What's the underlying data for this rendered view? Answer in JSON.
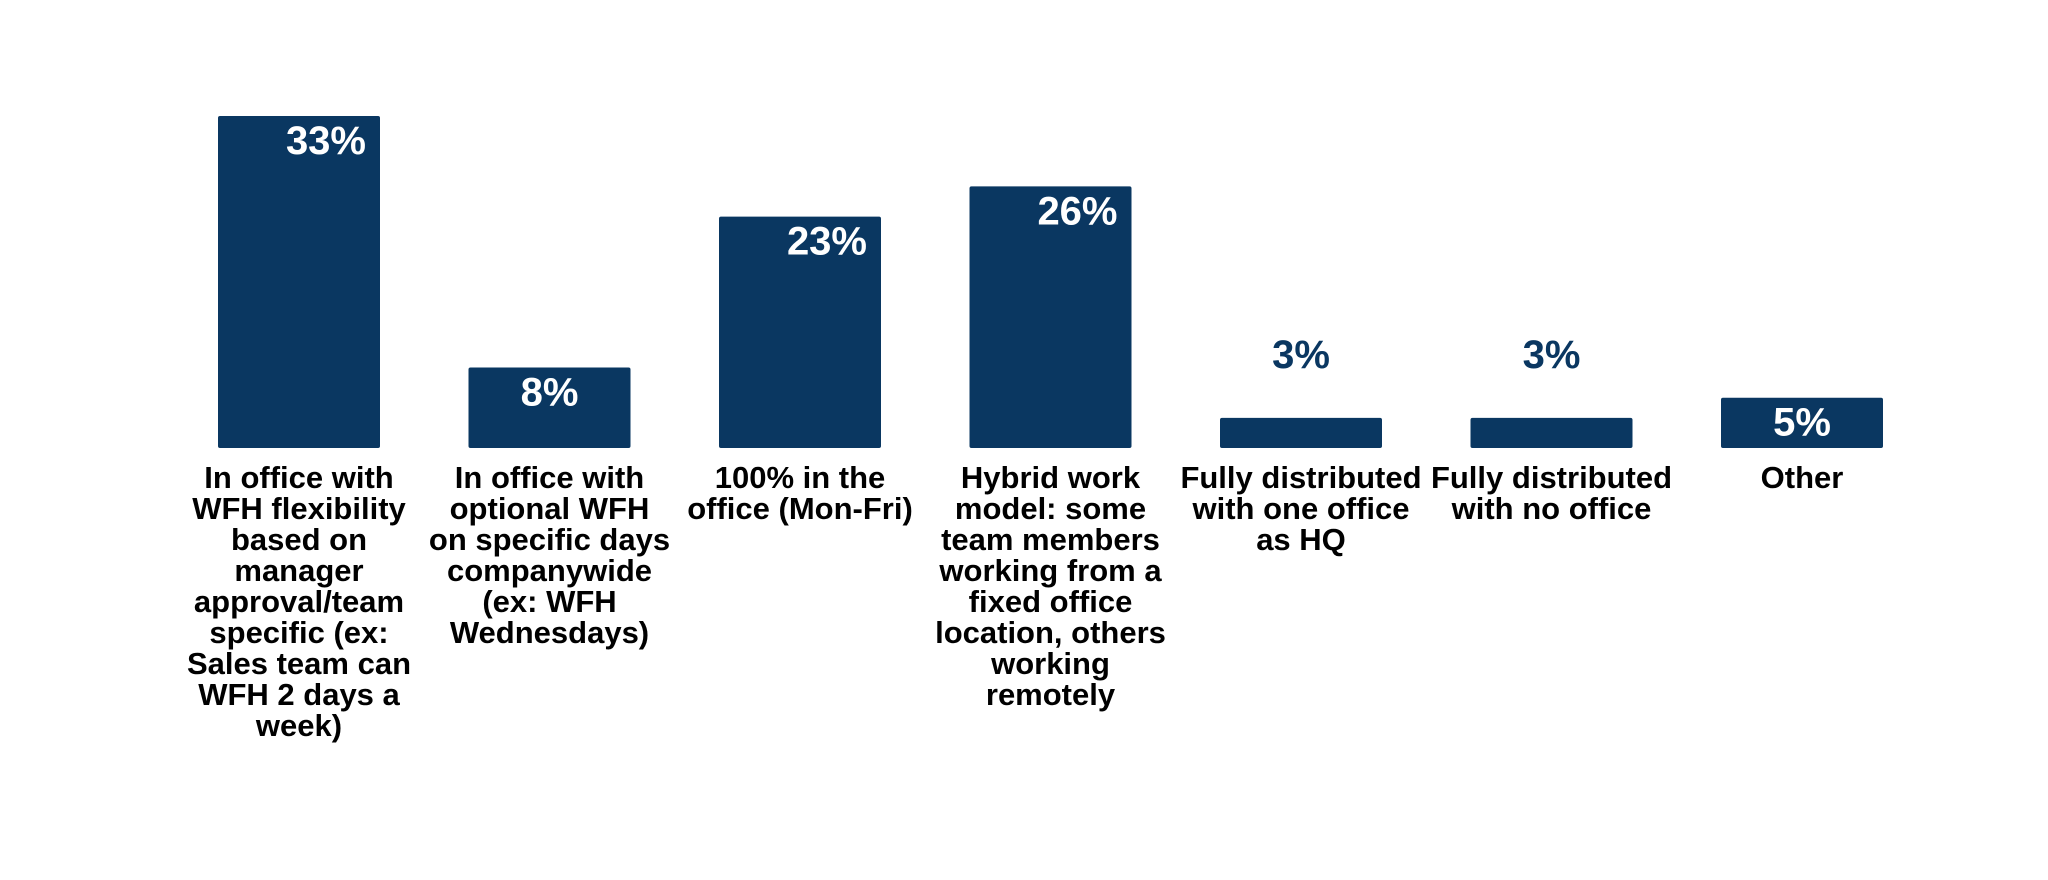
{
  "colors": {
    "bar": "#0a3761",
    "label_inside": "#ffffff",
    "label_outside": "#0a3761",
    "category_text": "#000000",
    "background": "#ffffff"
  },
  "chart_data": {
    "type": "bar",
    "title": "",
    "xlabel": "",
    "ylabel": "",
    "ylim": [
      0,
      33
    ],
    "grid": false,
    "legend": "none",
    "categories": [
      "In office with WFH flexibility based on manager approval/team specific (ex: Sales team can WFH 2 days a week)",
      "In office with optional WFH on specific days companywide (ex: WFH Wednesdays)",
      "100% in the office (Mon-Fri)",
      "Hybrid work model: some team members working from a fixed office location, others working remotely",
      "Fully distributed with one office as HQ",
      "Fully distributed with no office",
      "Other"
    ],
    "category_lines": [
      [
        "In office with",
        "WFH flexibility",
        "based on",
        "manager",
        "approval/team",
        "specific (ex:",
        "Sales team can",
        "WFH 2 days a",
        "week)"
      ],
      [
        "In office with",
        "optional WFH",
        "on specific days",
        "companywide",
        "(ex: WFH",
        "Wednesdays)"
      ],
      [
        "100% in the",
        "office (Mon-Fri)"
      ],
      [
        "Hybrid work",
        "model: some",
        "team members",
        "working from a",
        "fixed office",
        "location, others",
        "working",
        "remotely"
      ],
      [
        "Fully distributed",
        "with one office",
        "as HQ"
      ],
      [
        "Fully distributed",
        "with no office"
      ],
      [
        "Other"
      ]
    ],
    "values": [
      33,
      8,
      23,
      26,
      3,
      3,
      5
    ],
    "data_labels": [
      "33%",
      "8%",
      "23%",
      "26%",
      "3%",
      "3%",
      "5%"
    ]
  }
}
